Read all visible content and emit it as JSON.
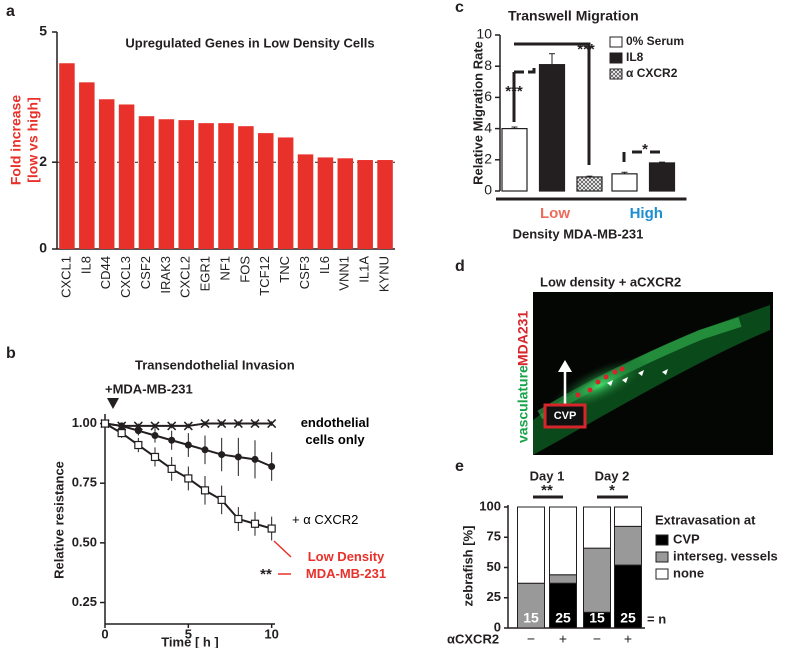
{
  "chart_data": [
    {
      "type": "bar",
      "label": "a",
      "title": "Upregulated Genes in Low Density Cells",
      "ylabel": [
        "Fold increase",
        "[low vs high]"
      ],
      "categories": [
        "CXCL1",
        "IL8",
        "CD44",
        "CXCL3",
        "CSF2",
        "IRAK3",
        "CXCL2",
        "EGR1",
        "NF1",
        "FOS",
        "TCF12",
        "TNC",
        "CSF3",
        "IL6",
        "VNN1",
        "IL1A",
        "KYNU"
      ],
      "values": [
        4.28,
        3.84,
        3.45,
        3.33,
        3.06,
        2.99,
        2.97,
        2.9,
        2.9,
        2.83,
        2.67,
        2.57,
        2.18,
        2.11,
        2.09,
        2.05,
        2.05
      ],
      "color": "#e8312a",
      "ylim": [
        0,
        5
      ],
      "yticks": [
        0,
        2,
        5
      ],
      "reference_line": 2
    },
    {
      "type": "line",
      "label": "b",
      "title": "Transendothelial Invasion",
      "xlabel": "Time [ h ]",
      "ylabel": "Relative resistance",
      "x": [
        0,
        1,
        2,
        3,
        4,
        5,
        6,
        7,
        8,
        9,
        10
      ],
      "xlim": [
        0,
        10.2
      ],
      "xticks": [
        0,
        5,
        10
      ],
      "ylim": [
        0.16,
        1.04
      ],
      "yticks": [
        {
          "value": 1,
          "label": "1.00"
        },
        {
          "value": 0.75,
          "label": "0.75"
        },
        {
          "value": 0.5,
          "label": "0.50"
        },
        {
          "value": 0.25,
          "label": "0.25"
        }
      ],
      "series": [
        {
          "name": "endothelial cells only",
          "color": "#231f20",
          "marker": "x",
          "values": [
            1.0,
            0.99,
            0.99,
            0.99,
            0.99,
            0.99,
            1.0,
            1.0,
            1.0,
            1.0,
            1.0
          ],
          "errors": [
            0,
            0.01,
            0.01,
            0.01,
            0.01,
            0.01,
            0.01,
            0.01,
            0.01,
            0.01,
            0.01
          ]
        },
        {
          "name": "+ α CXCR2",
          "color": "#231f20",
          "marker": "circle",
          "values": [
            1.0,
            0.99,
            0.97,
            0.95,
            0.93,
            0.91,
            0.89,
            0.87,
            0.86,
            0.85,
            0.82
          ],
          "errors": [
            0,
            0.01,
            0.02,
            0.03,
            0.04,
            0.05,
            0.06,
            0.07,
            0.08,
            0.08,
            0.06
          ]
        },
        {
          "name": "Low Density MDA-MB-231",
          "color": "#231f20",
          "marker": "square",
          "values": [
            1.0,
            0.96,
            0.91,
            0.86,
            0.81,
            0.77,
            0.72,
            0.68,
            0.6,
            0.58,
            0.56
          ],
          "errors": [
            0,
            0.02,
            0.03,
            0.04,
            0.05,
            0.05,
            0.06,
            0.06,
            0.05,
            0.05,
            0.05
          ]
        }
      ],
      "annotations": [
        "+MDA-MB-231",
        "**"
      ]
    },
    {
      "type": "grouped_bar",
      "label": "c",
      "title": "Transwell Migration",
      "ylabel": "Relative Migration Rate",
      "xlabel": "Density MDA-MB-231",
      "categories": [
        "Low",
        "High"
      ],
      "category_colors": [
        "#f06a5a",
        "#1b8fd2"
      ],
      "series": [
        {
          "name": "0% Serum",
          "color": "#ffffff",
          "values": [
            4.0,
            1.1
          ],
          "errors": [
            0.1,
            0.1
          ]
        },
        {
          "name": "IL8",
          "color": "#231f20",
          "values": [
            8.1,
            1.8
          ],
          "errors": [
            0.7,
            0.05
          ]
        },
        {
          "name": "α CXCR2",
          "color": "#cccccc",
          "pattern": "crosshatch",
          "values": [
            0.9,
            null
          ],
          "errors": [
            0.05,
            null
          ]
        }
      ],
      "ylim": [
        0,
        10
      ],
      "yticks": [
        0,
        2,
        4,
        6,
        8,
        10
      ],
      "legend": "upper right",
      "annotations": [
        "***",
        "***",
        "*"
      ]
    },
    {
      "type": "image",
      "label": "d",
      "title": "Low density + aCXCR2",
      "channels": [
        "vasculature",
        "MDA231"
      ],
      "channel_colors": [
        "#1aa34a",
        "#d7262b"
      ],
      "annotation": "CVP"
    },
    {
      "type": "stacked_bar",
      "label": "e",
      "ylabel": "zebrafish [%]",
      "xlabel": "αCXCR2",
      "categories": [
        "−",
        "+",
        "−",
        "+"
      ],
      "groups": [
        "Day 1",
        "Day 2"
      ],
      "series": [
        {
          "name": "CVP",
          "color": "#000000",
          "values": [
            0,
            37,
            13,
            52
          ]
        },
        {
          "name": "interseg. vessels",
          "color": "#999999",
          "values": [
            37,
            7,
            53,
            32
          ]
        },
        {
          "name": "none",
          "color": "#ffffff",
          "values": [
            63,
            56,
            34,
            16
          ]
        }
      ],
      "n": [
        15,
        25,
        15,
        25
      ],
      "n_label": "= n",
      "legend_title": "Extravasation at",
      "ylim": [
        0,
        100
      ],
      "yticks": [
        0,
        25,
        50,
        75,
        100
      ],
      "annotations": [
        "**",
        "*"
      ]
    }
  ]
}
